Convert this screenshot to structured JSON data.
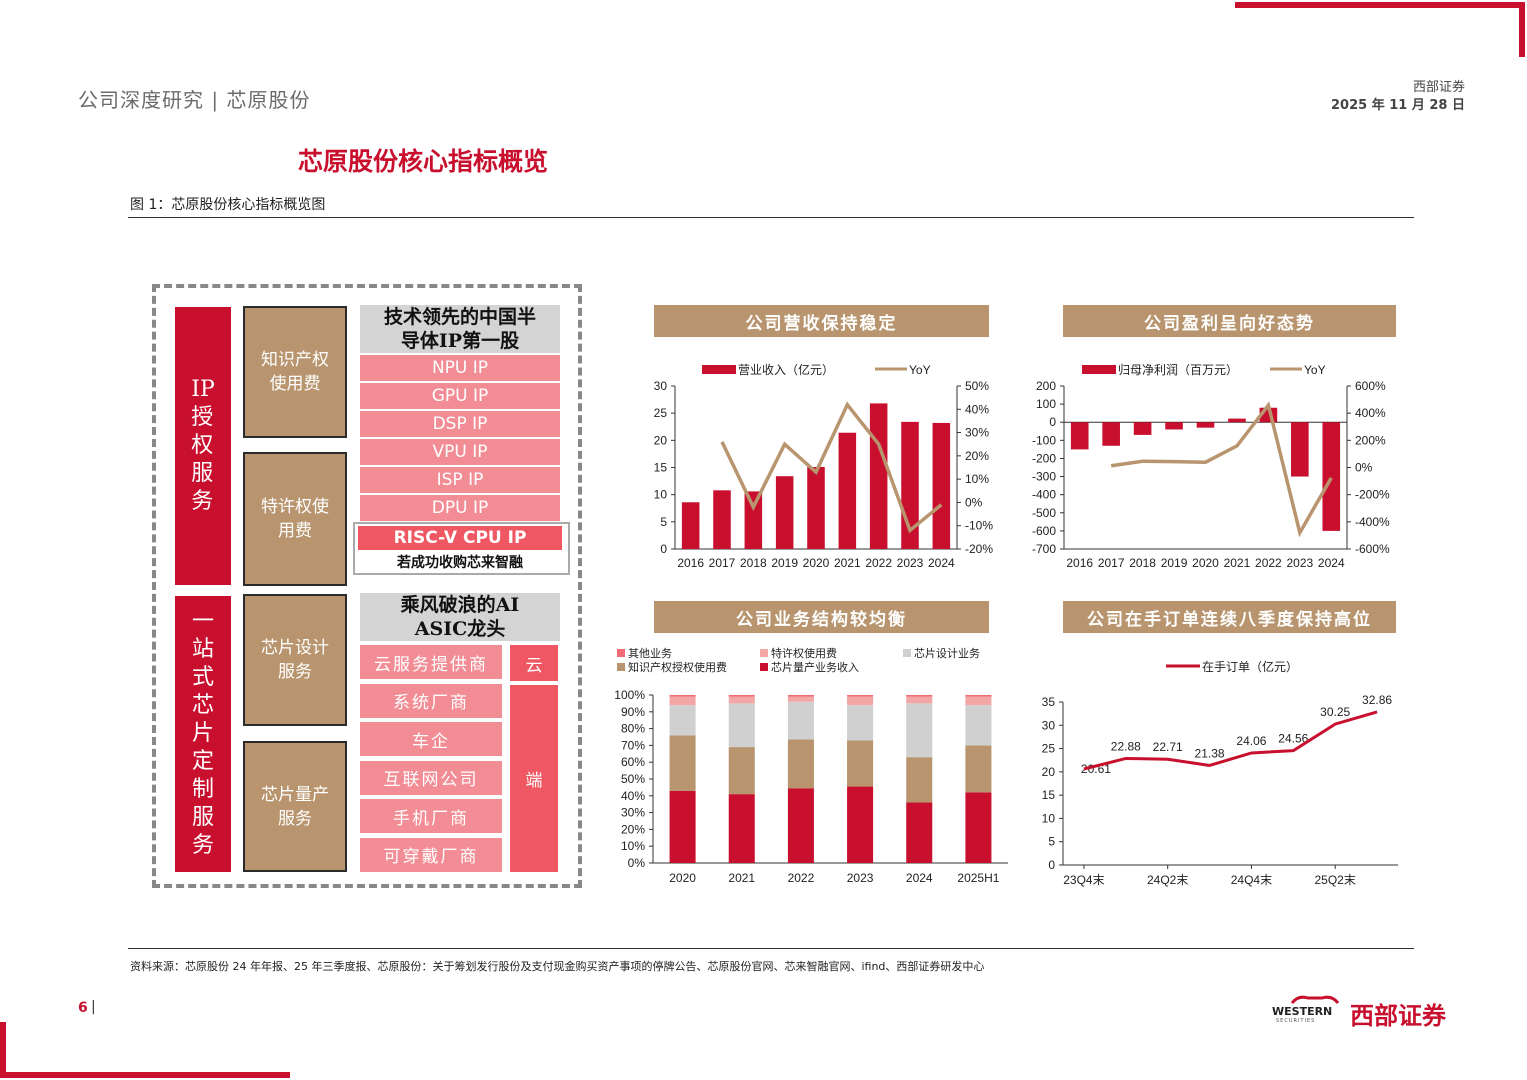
{
  "header": {
    "left": "公司深度研究 | 芯原股份",
    "broker": "西部证券",
    "date": "2025 年 11 月 28 日"
  },
  "section_title": "芯原股份核心指标概览",
  "figure_caption": "图 1：芯原股份核心指标概览图",
  "source_note": "资料来源：芯原股份 24 年年报、25 年三季度报、芯原股份：关于筹划发行股份及支付现金购买资产事项的停牌公告、芯原股份官网、芯来智融官网、ifind、西部证券研发中心",
  "page_number": "6",
  "page_sep": "|",
  "logo": {
    "en": "WESTERN",
    "en_sub": "SECURITIES",
    "cn": "西部证券"
  },
  "diagram": {
    "ip_service": "IP授权服务",
    "one_stop": "一站式芯片定制服务",
    "ip_fee": "知识产权使用费",
    "royalty": "特许权使用费",
    "design_service": "芯片设计服务",
    "mass_production": "芯片量产服务",
    "tech_lead": "技术领先的中国半导体IP第一股",
    "ip_items": [
      "NPU IP",
      "GPU IP",
      "DSP IP",
      "VPU IP",
      "ISP IP",
      "DPU IP"
    ],
    "riscv": "RISC-V CPU IP",
    "riscv_note": "若成功收购芯来智融",
    "ai_asic": "乘风破浪的AI ASIC龙头",
    "customers": [
      "云服务提供商",
      "系统厂商",
      "车企",
      "互联网公司",
      "手机厂商",
      "可穿戴厂商"
    ],
    "cloud": "云",
    "edge": "端"
  },
  "colors": {
    "red": "#c8102e",
    "tan": "#b8956e",
    "gray": "#cccccc",
    "pink": "#f28d95"
  },
  "chart_data": [
    {
      "type": "bar",
      "title": "公司营收保持稳定",
      "categories": [
        "2016",
        "2017",
        "2018",
        "2019",
        "2020",
        "2021",
        "2022",
        "2023",
        "2024"
      ],
      "series": [
        {
          "name": "营业收入（亿元）",
          "type": "bar",
          "axis": "left",
          "values": [
            8.6,
            10.8,
            10.6,
            13.4,
            15.1,
            21.4,
            26.8,
            23.4,
            23.2
          ]
        },
        {
          "name": "YoY",
          "type": "line",
          "axis": "right",
          "values": [
            null,
            26,
            -2,
            25,
            13,
            42,
            25,
            -12,
            -1
          ]
        }
      ],
      "ylim": [
        0,
        30
      ],
      "yticks": [
        0,
        5,
        10,
        15,
        20,
        25,
        30
      ],
      "y2lim": [
        -20,
        50
      ],
      "y2ticks": [
        "-20%",
        "-10%",
        "0%",
        "10%",
        "20%",
        "30%",
        "40%",
        "50%"
      ],
      "legend": "top"
    },
    {
      "type": "bar",
      "title": "公司盈利呈向好态势",
      "categories": [
        "2016",
        "2017",
        "2018",
        "2019",
        "2020",
        "2021",
        "2022",
        "2023",
        "2024"
      ],
      "series": [
        {
          "name": "归母净利润（百万元）",
          "type": "bar",
          "axis": "left",
          "values": [
            -150,
            -130,
            -70,
            -40,
            -30,
            20,
            80,
            -300,
            -600
          ]
        },
        {
          "name": "YoY",
          "type": "line",
          "axis": "right",
          "values": [
            null,
            13,
            46,
            43,
            39,
            159,
            459,
            -480,
            -76
          ]
        }
      ],
      "ylim": [
        -700,
        200
      ],
      "yticks": [
        -700,
        -600,
        -500,
        -400,
        -300,
        -200,
        -100,
        0,
        100,
        200
      ],
      "y2lim": [
        -600,
        600
      ],
      "y2ticks": [
        "-600%",
        "-400%",
        "-200%",
        "0%",
        "200%",
        "400%",
        "600%"
      ],
      "legend": "top"
    },
    {
      "type": "bar",
      "stacked": true,
      "title": "公司业务结构较均衡",
      "categories": [
        "2020",
        "2021",
        "2022",
        "2023",
        "2024",
        "2025H1"
      ],
      "series": [
        {
          "name": "芯片量产业务收入",
          "values": [
            43,
            41,
            44.5,
            45.5,
            36,
            42
          ]
        },
        {
          "name": "知识产权授权使用费",
          "values": [
            33,
            28,
            29,
            27.5,
            27,
            28
          ]
        },
        {
          "name": "芯片设计业务",
          "values": [
            18,
            26,
            22.5,
            21,
            32,
            24
          ]
        },
        {
          "name": "特许权使用费",
          "values": [
            5,
            4,
            3,
            5,
            4,
            5
          ]
        },
        {
          "name": "其他业务",
          "values": [
            1,
            1,
            1,
            1,
            1,
            1
          ]
        }
      ],
      "ylim": [
        0,
        100
      ],
      "yticks": [
        "0%",
        "10%",
        "20%",
        "30%",
        "40%",
        "50%",
        "60%",
        "70%",
        "80%",
        "90%",
        "100%"
      ],
      "legend": "top"
    },
    {
      "type": "line",
      "title": "公司在手订单连续八季度保持高位",
      "series": [
        {
          "name": "在手订单（亿元）",
          "values": [
            20.61,
            22.88,
            22.71,
            21.38,
            24.06,
            24.56,
            30.25,
            32.86
          ],
          "labels": [
            "20.61",
            "22.88",
            "22.71",
            "21.38",
            "24.06",
            "24.56",
            "30.25",
            "32.86"
          ]
        }
      ],
      "x_tick_labels": [
        "23Q4末",
        "24Q2末",
        "24Q4末",
        "25Q2末"
      ],
      "ylim": [
        0,
        35
      ],
      "yticks": [
        0,
        5,
        10,
        15,
        20,
        25,
        30,
        35
      ],
      "legend": "top"
    }
  ]
}
